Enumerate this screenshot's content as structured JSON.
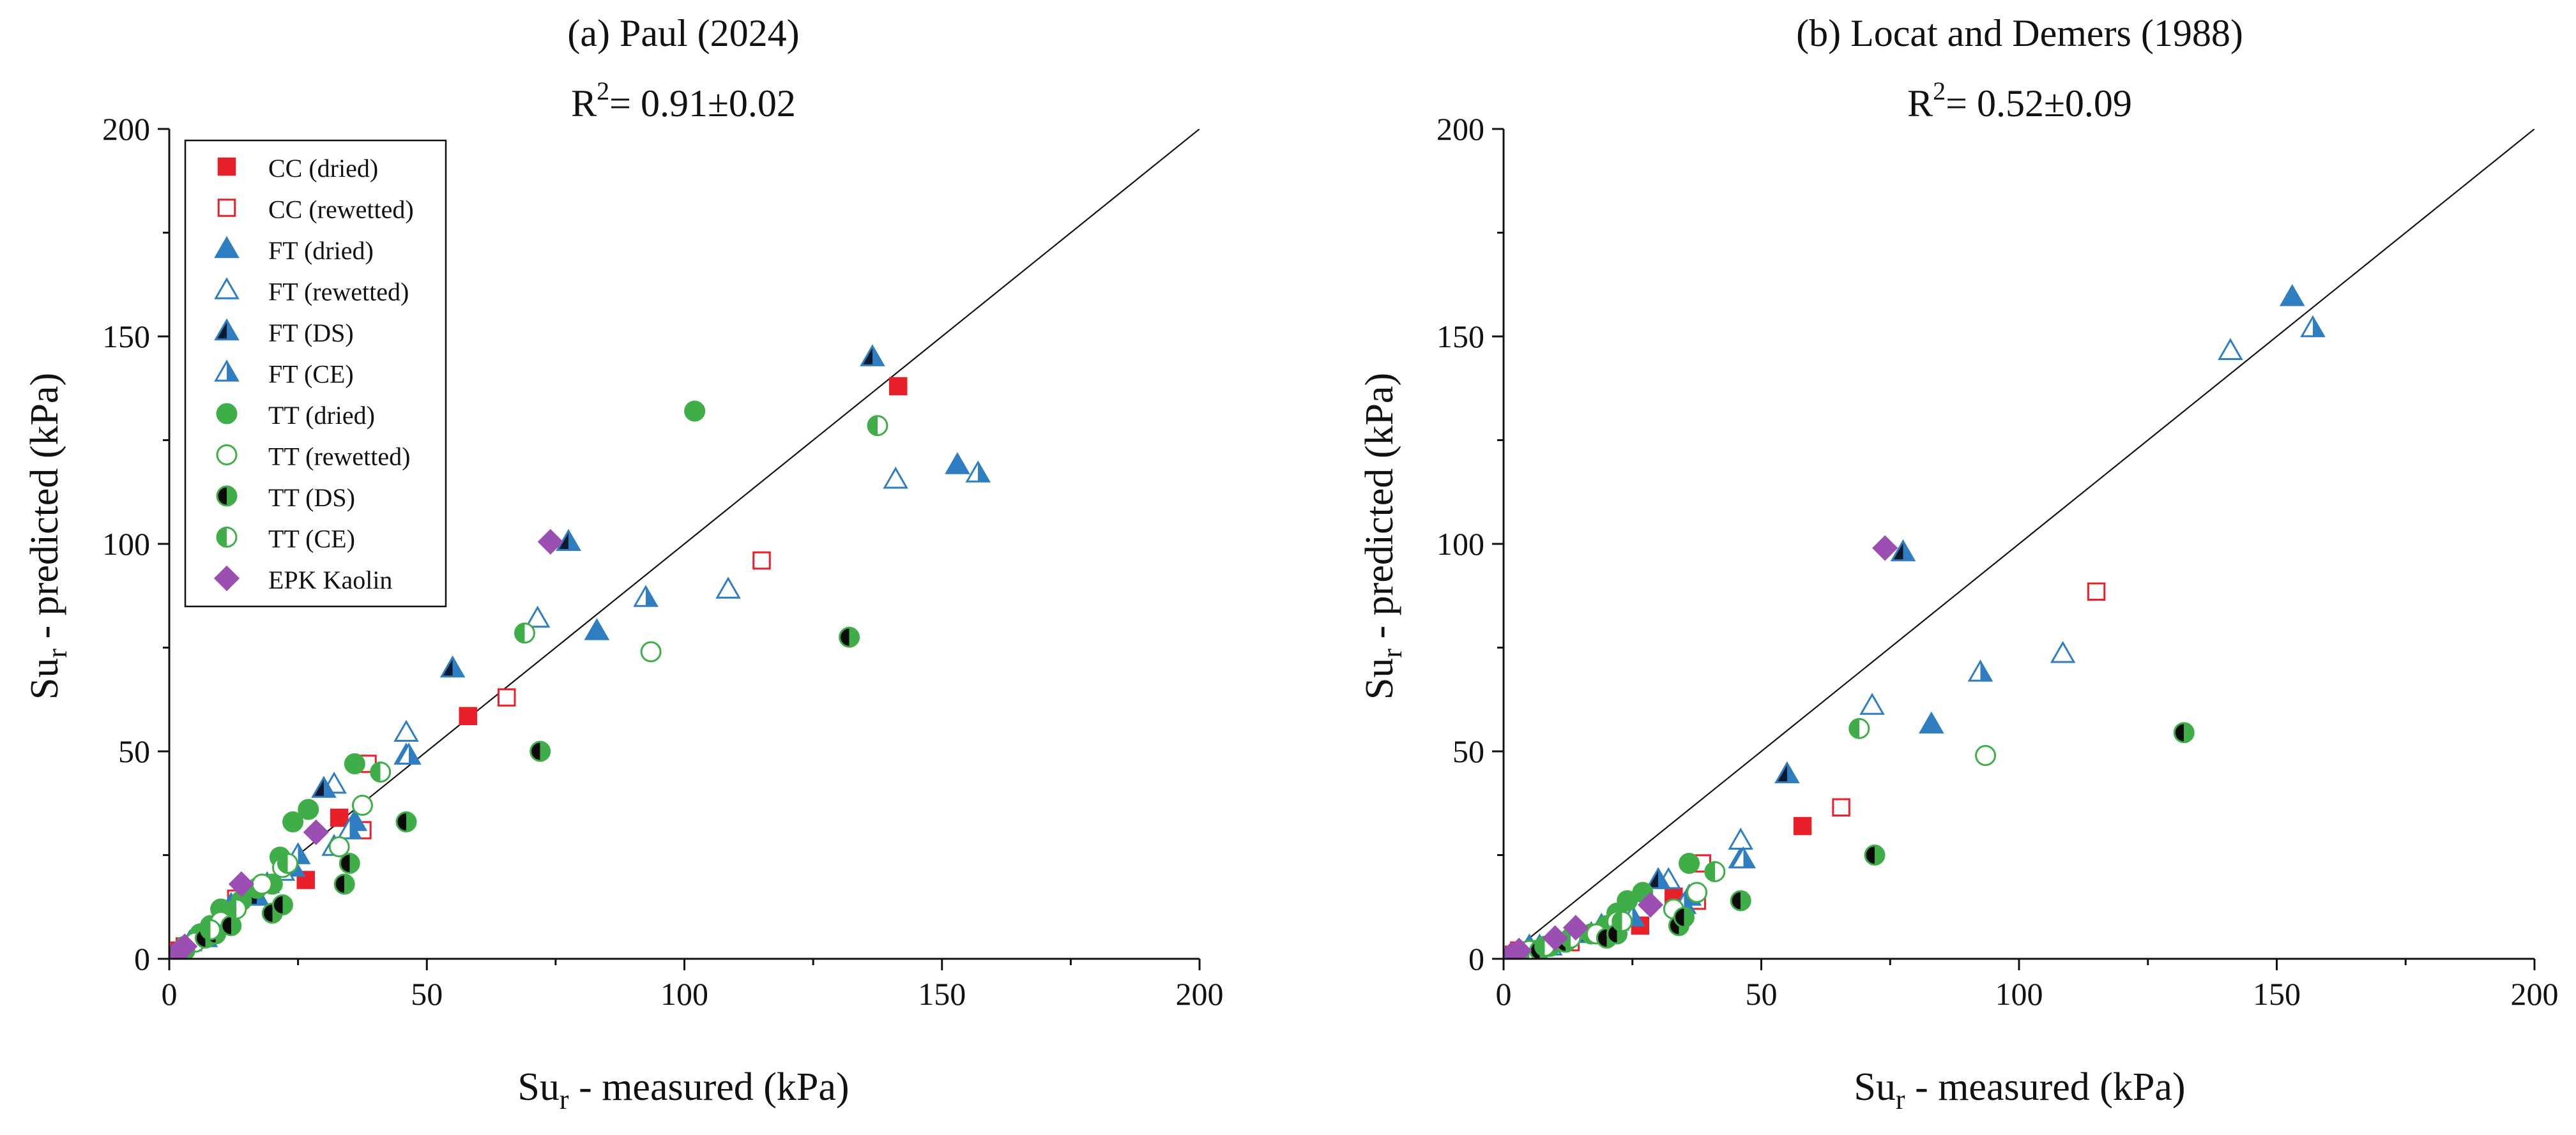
{
  "colors": {
    "cc": "#e8202a",
    "ft": "#2f7ec1",
    "ft_dark": "#0b1a2e",
    "tt": "#3fae49",
    "tt_dark": "#0b0b0b",
    "epk": "#9b4fb2",
    "axis": "#111111"
  },
  "legend": [
    {
      "label": "CC (dried)",
      "marker": "square",
      "fill": "full",
      "color": "#e8202a"
    },
    {
      "label": "CC (rewetted)",
      "marker": "square",
      "fill": "none",
      "color": "#e8202a"
    },
    {
      "label": "FT (dried)",
      "marker": "triangle",
      "fill": "full",
      "color": "#2f7ec1"
    },
    {
      "label": "FT (rewetted)",
      "marker": "triangle",
      "fill": "none",
      "color": "#2f7ec1"
    },
    {
      "label": "FT (DS)",
      "marker": "triangle",
      "fill": "half-dark",
      "color": "#2f7ec1"
    },
    {
      "label": "FT (CE)",
      "marker": "triangle",
      "fill": "half",
      "color": "#2f7ec1"
    },
    {
      "label": "TT (dried)",
      "marker": "circle",
      "fill": "full",
      "color": "#3fae49"
    },
    {
      "label": "TT (rewetted)",
      "marker": "circle",
      "fill": "none",
      "color": "#3fae49"
    },
    {
      "label": "TT (DS)",
      "marker": "circle",
      "fill": "half-dark",
      "color": "#3fae49"
    },
    {
      "label": "TT (CE)",
      "marker": "circle",
      "fill": "half",
      "color": "#3fae49"
    },
    {
      "label": "EPK Kaolin",
      "marker": "diamond",
      "fill": "full",
      "color": "#9b4fb2"
    }
  ],
  "chart_data": [
    {
      "type": "scatter",
      "title": "(a) Paul (2024)",
      "r2_base": "R",
      "r2_sup": "2",
      "r2_text": "= 0.91±0.02",
      "xlabel_main": "Su",
      "xlabel_sub": "r",
      "xlabel_rest": " - measured (kPa)",
      "ylabel_main": "Su",
      "ylabel_sub": "r",
      "ylabel_rest": " - predicted (kPa)",
      "xlim": [
        0,
        200
      ],
      "ylim": [
        0,
        200
      ],
      "xticks": [
        0,
        50,
        100,
        150,
        200
      ],
      "yticks": [
        0,
        50,
        100,
        150,
        200
      ],
      "reference_line": [
        [
          0,
          0
        ],
        [
          200,
          200
        ]
      ],
      "series": [
        {
          "name": "CC (dried)",
          "points": [
            [
              2,
              2
            ],
            [
              26.5,
              19
            ],
            [
              33,
              34
            ],
            [
              58,
              58.5
            ],
            [
              141.5,
              138
            ]
          ]
        },
        {
          "name": "CC (rewetted)",
          "points": [
            [
              3,
              3
            ],
            [
              13,
              14.5
            ],
            [
              37.5,
              31
            ],
            [
              38.5,
              47
            ],
            [
              65.5,
              63
            ],
            [
              115,
              96
            ]
          ]
        },
        {
          "name": "FT (dried)",
          "points": [
            [
              4,
              4
            ],
            [
              12,
              13
            ],
            [
              19,
              18
            ],
            [
              24,
              22
            ],
            [
              36,
              33
            ],
            [
              46,
              49
            ],
            [
              83,
              79
            ],
            [
              153,
              119
            ]
          ]
        },
        {
          "name": "FT (rewetted)",
          "points": [
            [
              9,
              8
            ],
            [
              22,
              21
            ],
            [
              32,
              27
            ],
            [
              32,
              42
            ],
            [
              46,
              54.5
            ],
            [
              71.5,
              82
            ],
            [
              108.5,
              89
            ],
            [
              141,
              115.5
            ]
          ]
        },
        {
          "name": "FT (DS)",
          "points": [
            [
              7,
              5
            ],
            [
              17,
              15
            ],
            [
              30,
              41
            ],
            [
              55,
              70
            ],
            [
              77.5,
              100.5
            ],
            [
              136.5,
              145
            ]
          ]
        },
        {
          "name": "FT (CE)",
          "points": [
            [
              25,
              25
            ],
            [
              35,
              31
            ],
            [
              46.5,
              49
            ],
            [
              92.5,
              87
            ],
            [
              157,
              117
            ]
          ]
        },
        {
          "name": "TT (dried)",
          "points": [
            [
              3,
              3
            ],
            [
              6,
              6
            ],
            [
              8,
              8
            ],
            [
              10,
              12
            ],
            [
              14,
              14
            ],
            [
              17,
              17
            ],
            [
              20,
              18
            ],
            [
              21.5,
              24.5
            ],
            [
              24,
              33
            ],
            [
              27,
              36
            ],
            [
              36,
              47
            ],
            [
              102,
              132
            ]
          ]
        },
        {
          "name": "TT (rewetted)",
          "points": [
            [
              5,
              4
            ],
            [
              10,
              9
            ],
            [
              18,
              18
            ],
            [
              22,
              22
            ],
            [
              33,
              27
            ],
            [
              37.5,
              37
            ],
            [
              93.5,
              74
            ]
          ]
        },
        {
          "name": "TT (DS)",
          "points": [
            [
              3,
              2
            ],
            [
              7,
              5
            ],
            [
              9,
              6
            ],
            [
              12,
              8
            ],
            [
              20,
              11
            ],
            [
              22,
              13
            ],
            [
              34,
              18
            ],
            [
              35,
              23
            ],
            [
              46,
              33
            ],
            [
              72,
              50
            ],
            [
              132,
              77.5
            ]
          ]
        },
        {
          "name": "TT (CE)",
          "points": [
            [
              8,
              7
            ],
            [
              13,
              12
            ],
            [
              23,
              23
            ],
            [
              41,
              45
            ],
            [
              69,
              78.5
            ],
            [
              137.5,
              128.5
            ]
          ]
        },
        {
          "name": "EPK Kaolin",
          "points": [
            [
              1.5,
              1.5
            ],
            [
              3,
              3
            ],
            [
              14,
              18
            ],
            [
              28.5,
              30.5
            ],
            [
              74,
              100.5
            ]
          ]
        }
      ]
    },
    {
      "type": "scatter",
      "title": "(b) Locat and Demers (1988)",
      "r2_base": "R",
      "r2_sup": "2",
      "r2_text": "= 0.52±0.09",
      "xlabel_main": "Su",
      "xlabel_sub": "r",
      "xlabel_rest": " - measured (kPa)",
      "ylabel_main": "Su",
      "ylabel_sub": "r",
      "ylabel_rest": " - predicted (kPa)",
      "xlim": [
        0,
        200
      ],
      "ylim": [
        0,
        200
      ],
      "xticks": [
        0,
        50,
        100,
        150,
        200
      ],
      "yticks": [
        0,
        50,
        100,
        150,
        200
      ],
      "reference_line": [
        [
          0,
          0
        ],
        [
          200,
          200
        ]
      ],
      "series": [
        {
          "name": "CC (dried)",
          "points": [
            [
              2,
              1
            ],
            [
              26.5,
              8
            ],
            [
              33,
              15
            ],
            [
              58,
              32
            ]
          ]
        },
        {
          "name": "CC (rewetted)",
          "points": [
            [
              3,
              2
            ],
            [
              13,
              4
            ],
            [
              37.5,
              14
            ],
            [
              38.5,
              23
            ],
            [
              65.5,
              36.5
            ],
            [
              115,
              88.5
            ]
          ]
        },
        {
          "name": "FT (dried)",
          "points": [
            [
              5,
              3
            ],
            [
              19,
              8
            ],
            [
              36,
              15
            ],
            [
              46,
              24
            ],
            [
              83,
              56.5
            ],
            [
              153,
              159.5
            ]
          ]
        },
        {
          "name": "FT (rewetted)",
          "points": [
            [
              9,
              3
            ],
            [
              22,
              9
            ],
            [
              32,
              19
            ],
            [
              46,
              28.5
            ],
            [
              71.5,
              61
            ],
            [
              108.5,
              73.5
            ],
            [
              141,
              146.5
            ]
          ]
        },
        {
          "name": "FT (DS)",
          "points": [
            [
              7,
              3
            ],
            [
              17,
              6
            ],
            [
              30,
              19
            ],
            [
              55,
              44.5
            ],
            [
              77.5,
              98
            ]
          ]
        },
        {
          "name": "FT (CE)",
          "points": [
            [
              25,
              10
            ],
            [
              35,
              13
            ],
            [
              46.5,
              24
            ],
            [
              92.5,
              69
            ],
            [
              157,
              152
            ]
          ]
        },
        {
          "name": "TT (dried)",
          "points": [
            [
              3,
              1
            ],
            [
              6,
              2
            ],
            [
              8,
              3
            ],
            [
              12,
              4
            ],
            [
              17,
              6
            ],
            [
              20,
              8
            ],
            [
              22,
              11
            ],
            [
              24,
              14
            ],
            [
              27,
              16
            ],
            [
              36,
              23
            ]
          ]
        },
        {
          "name": "TT (rewetted)",
          "points": [
            [
              5,
              2
            ],
            [
              10,
              4
            ],
            [
              18,
              6
            ],
            [
              22,
              9
            ],
            [
              33,
              12
            ],
            [
              37.5,
              16
            ],
            [
              93.5,
              49
            ]
          ]
        },
        {
          "name": "TT (DS)",
          "points": [
            [
              3,
              1
            ],
            [
              7,
              2
            ],
            [
              9,
              3
            ],
            [
              12,
              4
            ],
            [
              20,
              5
            ],
            [
              22,
              6
            ],
            [
              34,
              8
            ],
            [
              35,
              10
            ],
            [
              46,
              14
            ],
            [
              72,
              25
            ],
            [
              132,
              54.5
            ]
          ]
        },
        {
          "name": "TT (CE)",
          "points": [
            [
              8,
              3
            ],
            [
              13,
              5
            ],
            [
              23,
              9
            ],
            [
              41,
              21
            ],
            [
              69,
              55.5
            ]
          ]
        },
        {
          "name": "EPK Kaolin",
          "points": [
            [
              1.5,
              1
            ],
            [
              3,
              2
            ],
            [
              10,
              5
            ],
            [
              14,
              7.5
            ],
            [
              28.5,
              13
            ],
            [
              74,
              99
            ]
          ]
        }
      ]
    }
  ]
}
